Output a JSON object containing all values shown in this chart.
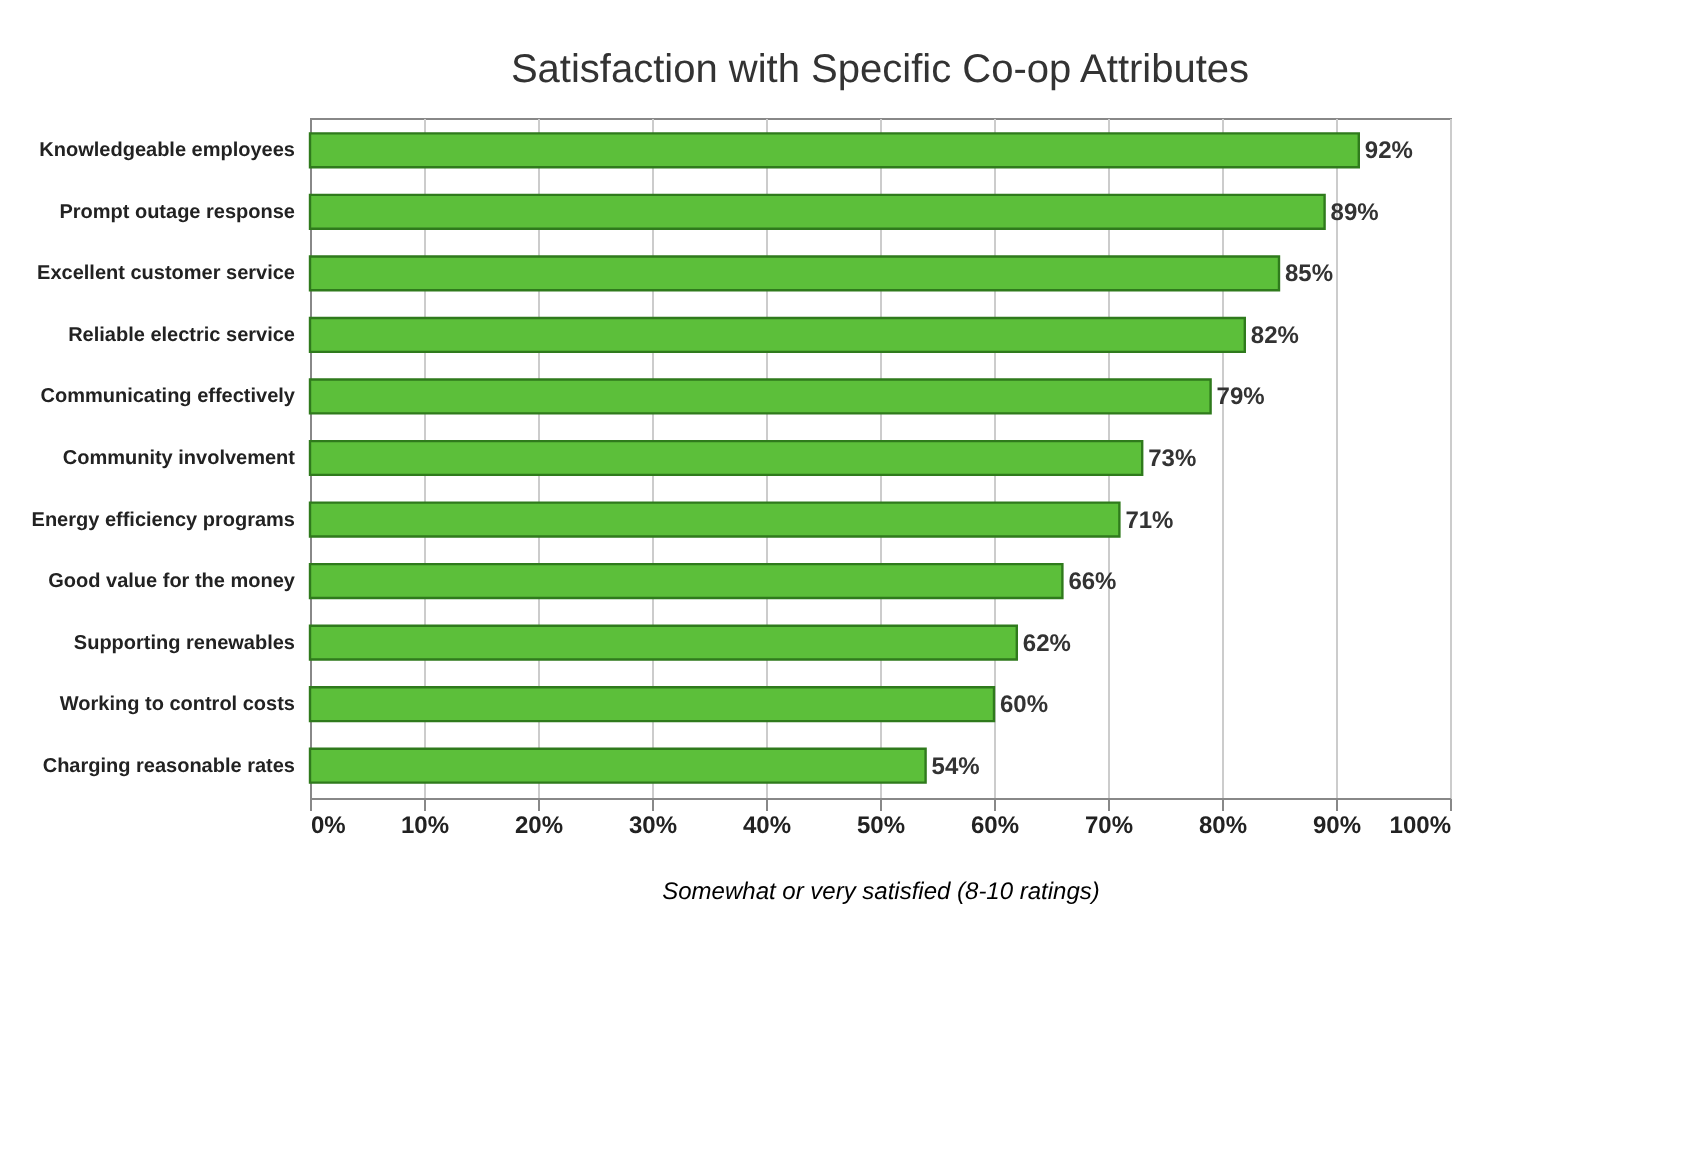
{
  "chart_data": {
    "type": "bar",
    "orientation": "horizontal",
    "title": "Satisfaction with Specific Co-op Attributes",
    "xlabel": "Somewhat or very satisfied (8-10 ratings)",
    "categories": [
      "Knowledgeable employees",
      "Prompt outage response",
      "Excellent customer service",
      "Reliable electric service",
      "Communicating effectively",
      "Community involvement",
      "Energy efficiency programs",
      "Good value for the money",
      "Supporting renewables",
      "Working to control costs",
      "Charging reasonable rates"
    ],
    "values": [
      92,
      89,
      85,
      82,
      79,
      73,
      71,
      66,
      62,
      60,
      54
    ],
    "value_labels": [
      "92%",
      "89%",
      "85%",
      "82%",
      "79%",
      "73%",
      "71%",
      "66%",
      "62%",
      "60%",
      "54%"
    ],
    "color": "#5cbf3a",
    "xlim": [
      0,
      100
    ],
    "xticks": [
      {
        "value": 0,
        "label": "0%"
      },
      {
        "value": 10,
        "label": "10%"
      },
      {
        "value": 20,
        "label": "20%"
      },
      {
        "value": 30,
        "label": "30%"
      },
      {
        "value": 40,
        "label": "40%"
      },
      {
        "value": 50,
        "label": "50%"
      },
      {
        "value": 60,
        "label": "60%"
      },
      {
        "value": 70,
        "label": "70%"
      },
      {
        "value": 80,
        "label": "80%"
      },
      {
        "value": 90,
        "label": "90%"
      },
      {
        "value": 100,
        "label": "100%"
      }
    ],
    "grid": "x"
  }
}
